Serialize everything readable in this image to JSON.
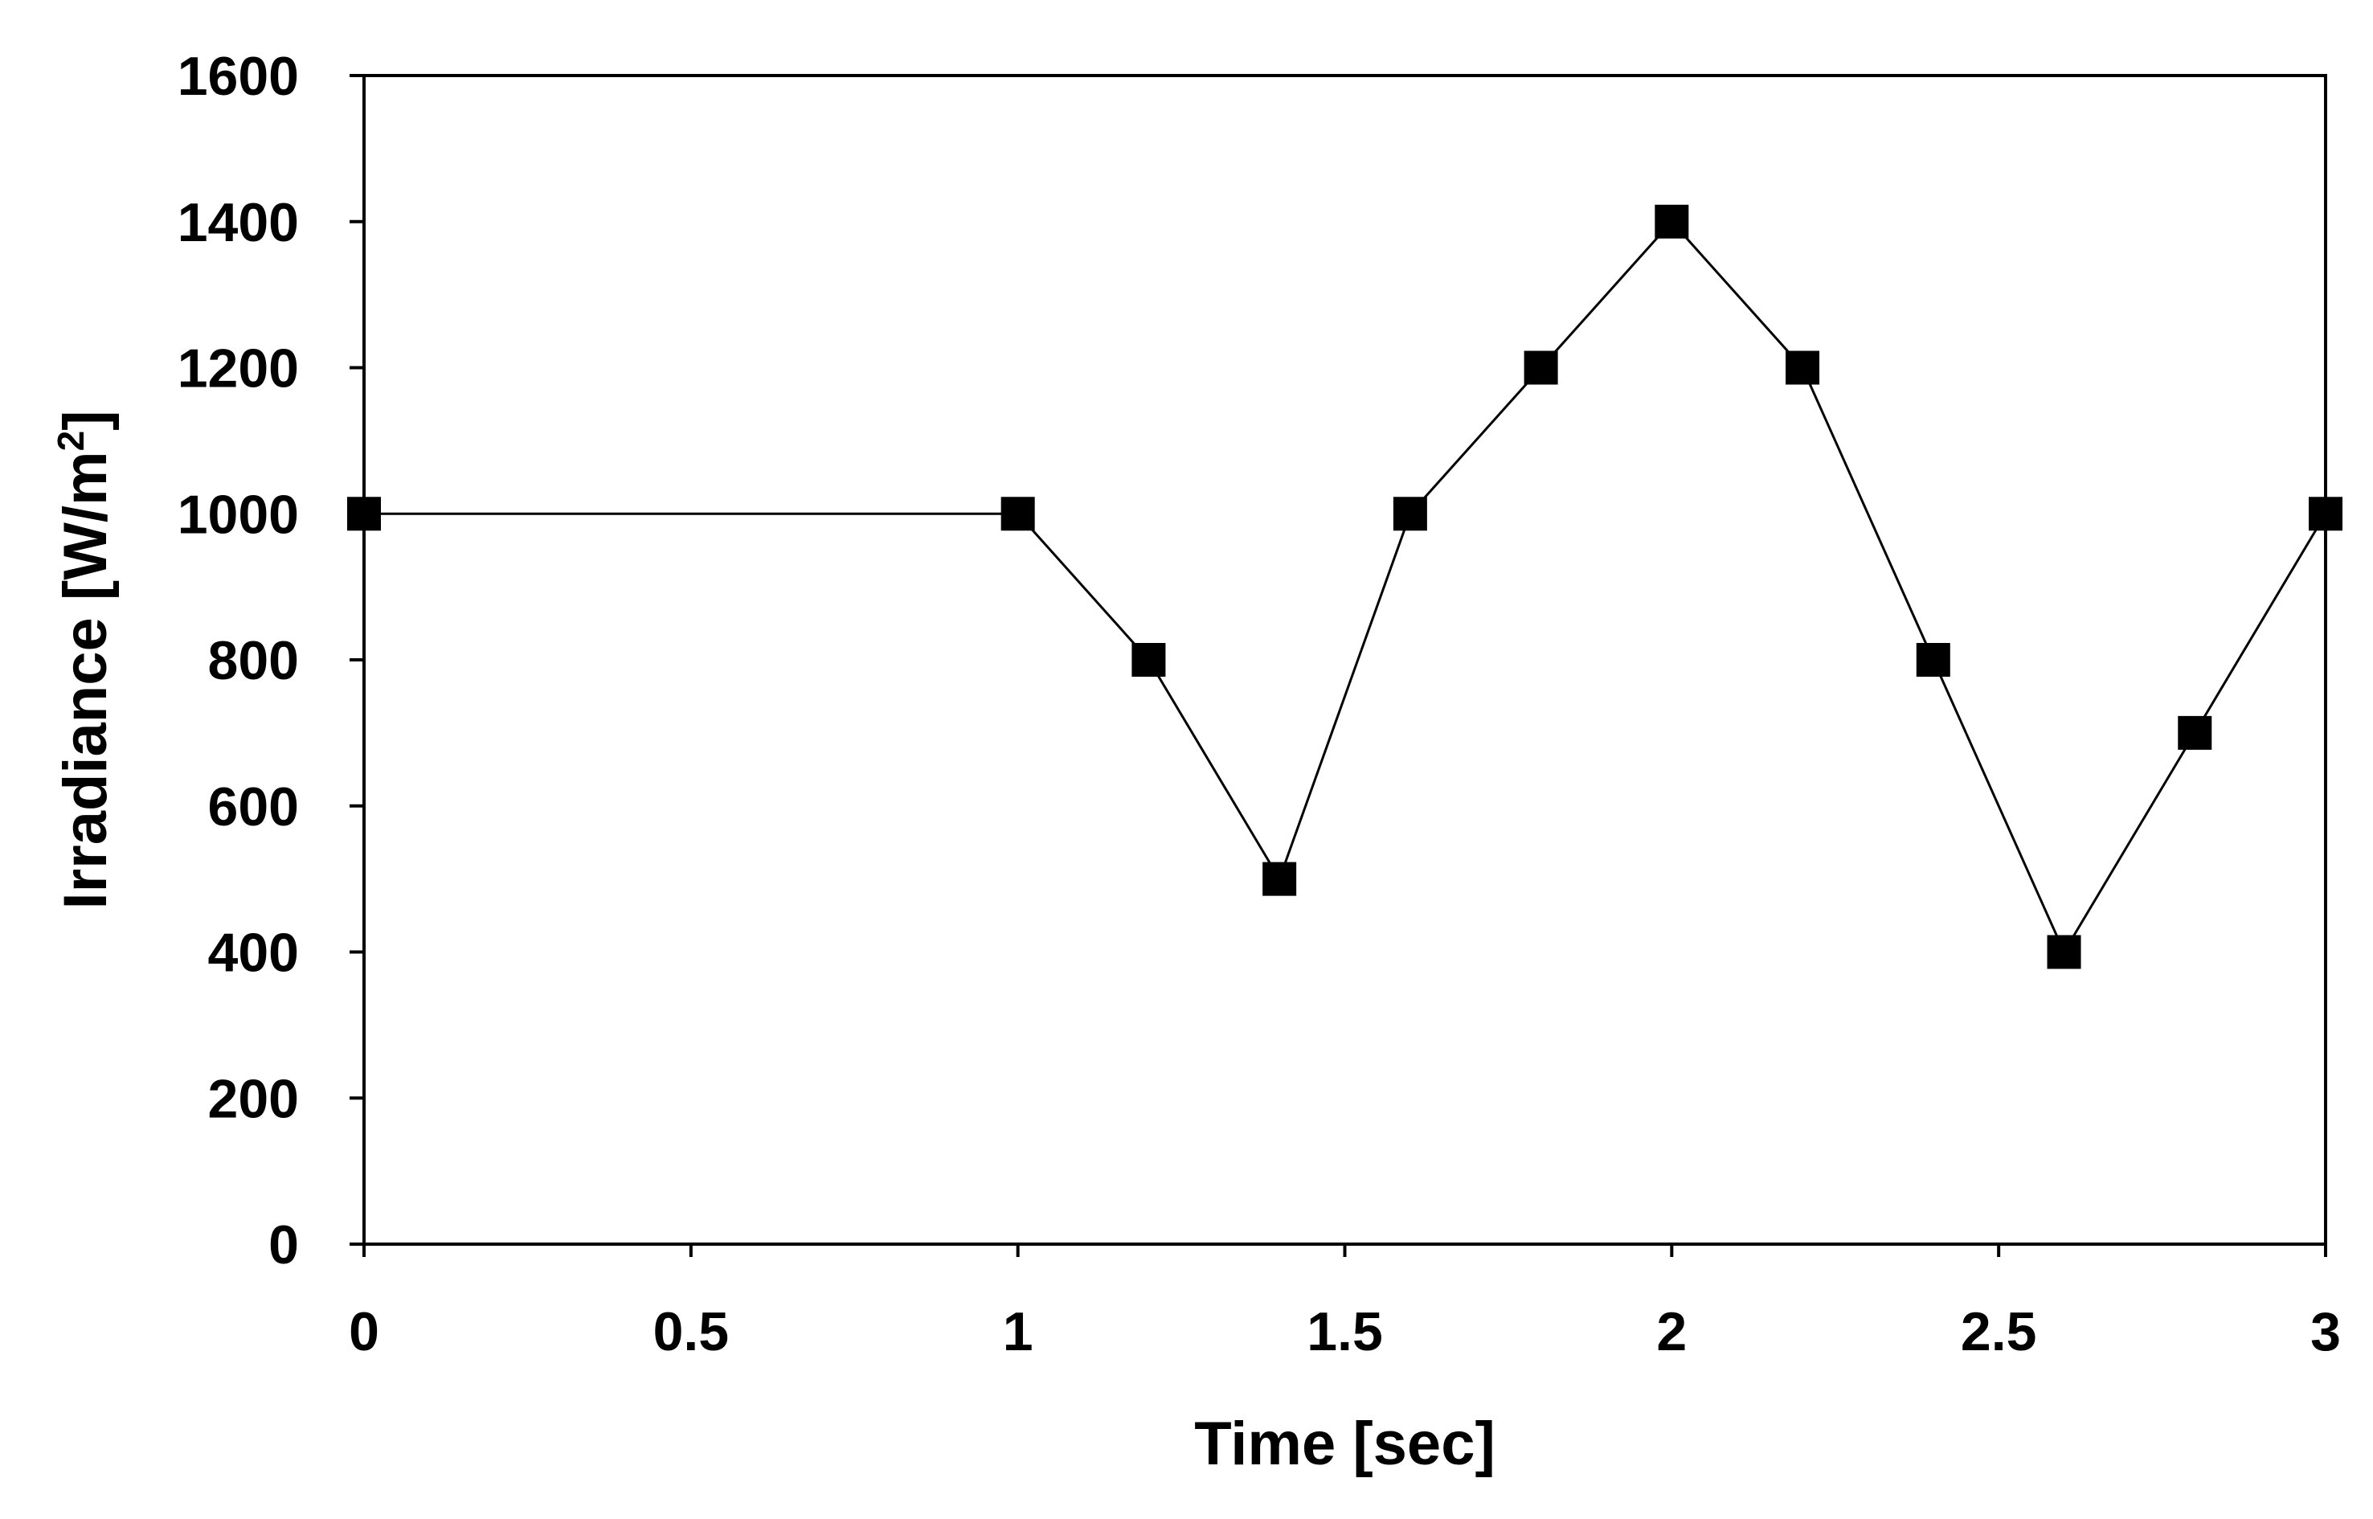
{
  "chart_data": {
    "type": "line",
    "title": "",
    "xlabel": "Time [sec]",
    "ylabel_main": "Irradiance [W/m",
    "ylabel_sup": "2",
    "ylabel_close": "]",
    "xlim": [
      0,
      3
    ],
    "ylim": [
      0,
      1600
    ],
    "xticks": [
      0,
      0.5,
      1,
      1.5,
      2,
      2.5,
      3
    ],
    "xtick_labels": [
      "0",
      "0.5",
      "1",
      "1.5",
      "2",
      "2.5",
      "3"
    ],
    "yticks": [
      0,
      200,
      400,
      600,
      800,
      1000,
      1200,
      1400,
      1600
    ],
    "ytick_labels": [
      "0",
      "200",
      "400",
      "600",
      "800",
      "1000",
      "1200",
      "1400",
      "1600"
    ],
    "grid": false,
    "legend": "none",
    "series": [
      {
        "marker": "square",
        "color": "#000000",
        "x": [
          0,
          1,
          1.2,
          1.4,
          1.6,
          1.8,
          2,
          2.2,
          2.4,
          2.6,
          2.8,
          3
        ],
        "y": [
          1000,
          1000,
          800,
          500,
          1000,
          1200,
          1400,
          1200,
          800,
          400,
          700,
          1000
        ]
      }
    ]
  }
}
